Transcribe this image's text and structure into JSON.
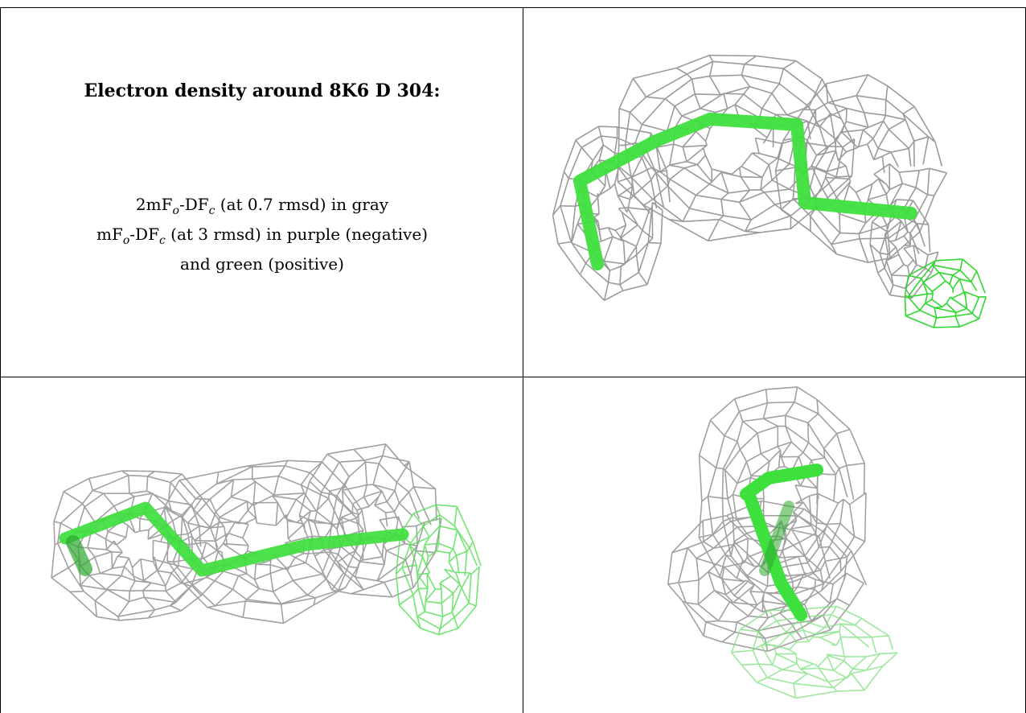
{
  "caption": {
    "title": "Electron density around 8K6 D 304:",
    "line1_parts": [
      "2mF",
      "o",
      "-DF",
      "c",
      " (at 0.7 rmsd) in gray"
    ],
    "line2_parts": [
      "mF",
      "o",
      "-DF",
      "c",
      " (at 3 rmsd) in purple (negative)"
    ],
    "line3": "and green (positive)"
  },
  "colors": {
    "mesh_2fofc": "#8a8a8a",
    "mesh_positive": "#2ed82e",
    "ligand_stick": "#3ee03e",
    "border": "#000000"
  },
  "panels": [
    {
      "id": "view-top-right",
      "icon": "electron-density-view-1"
    },
    {
      "id": "view-bottom-left",
      "icon": "electron-density-view-2"
    },
    {
      "id": "view-bottom-right",
      "icon": "electron-density-view-3"
    }
  ]
}
